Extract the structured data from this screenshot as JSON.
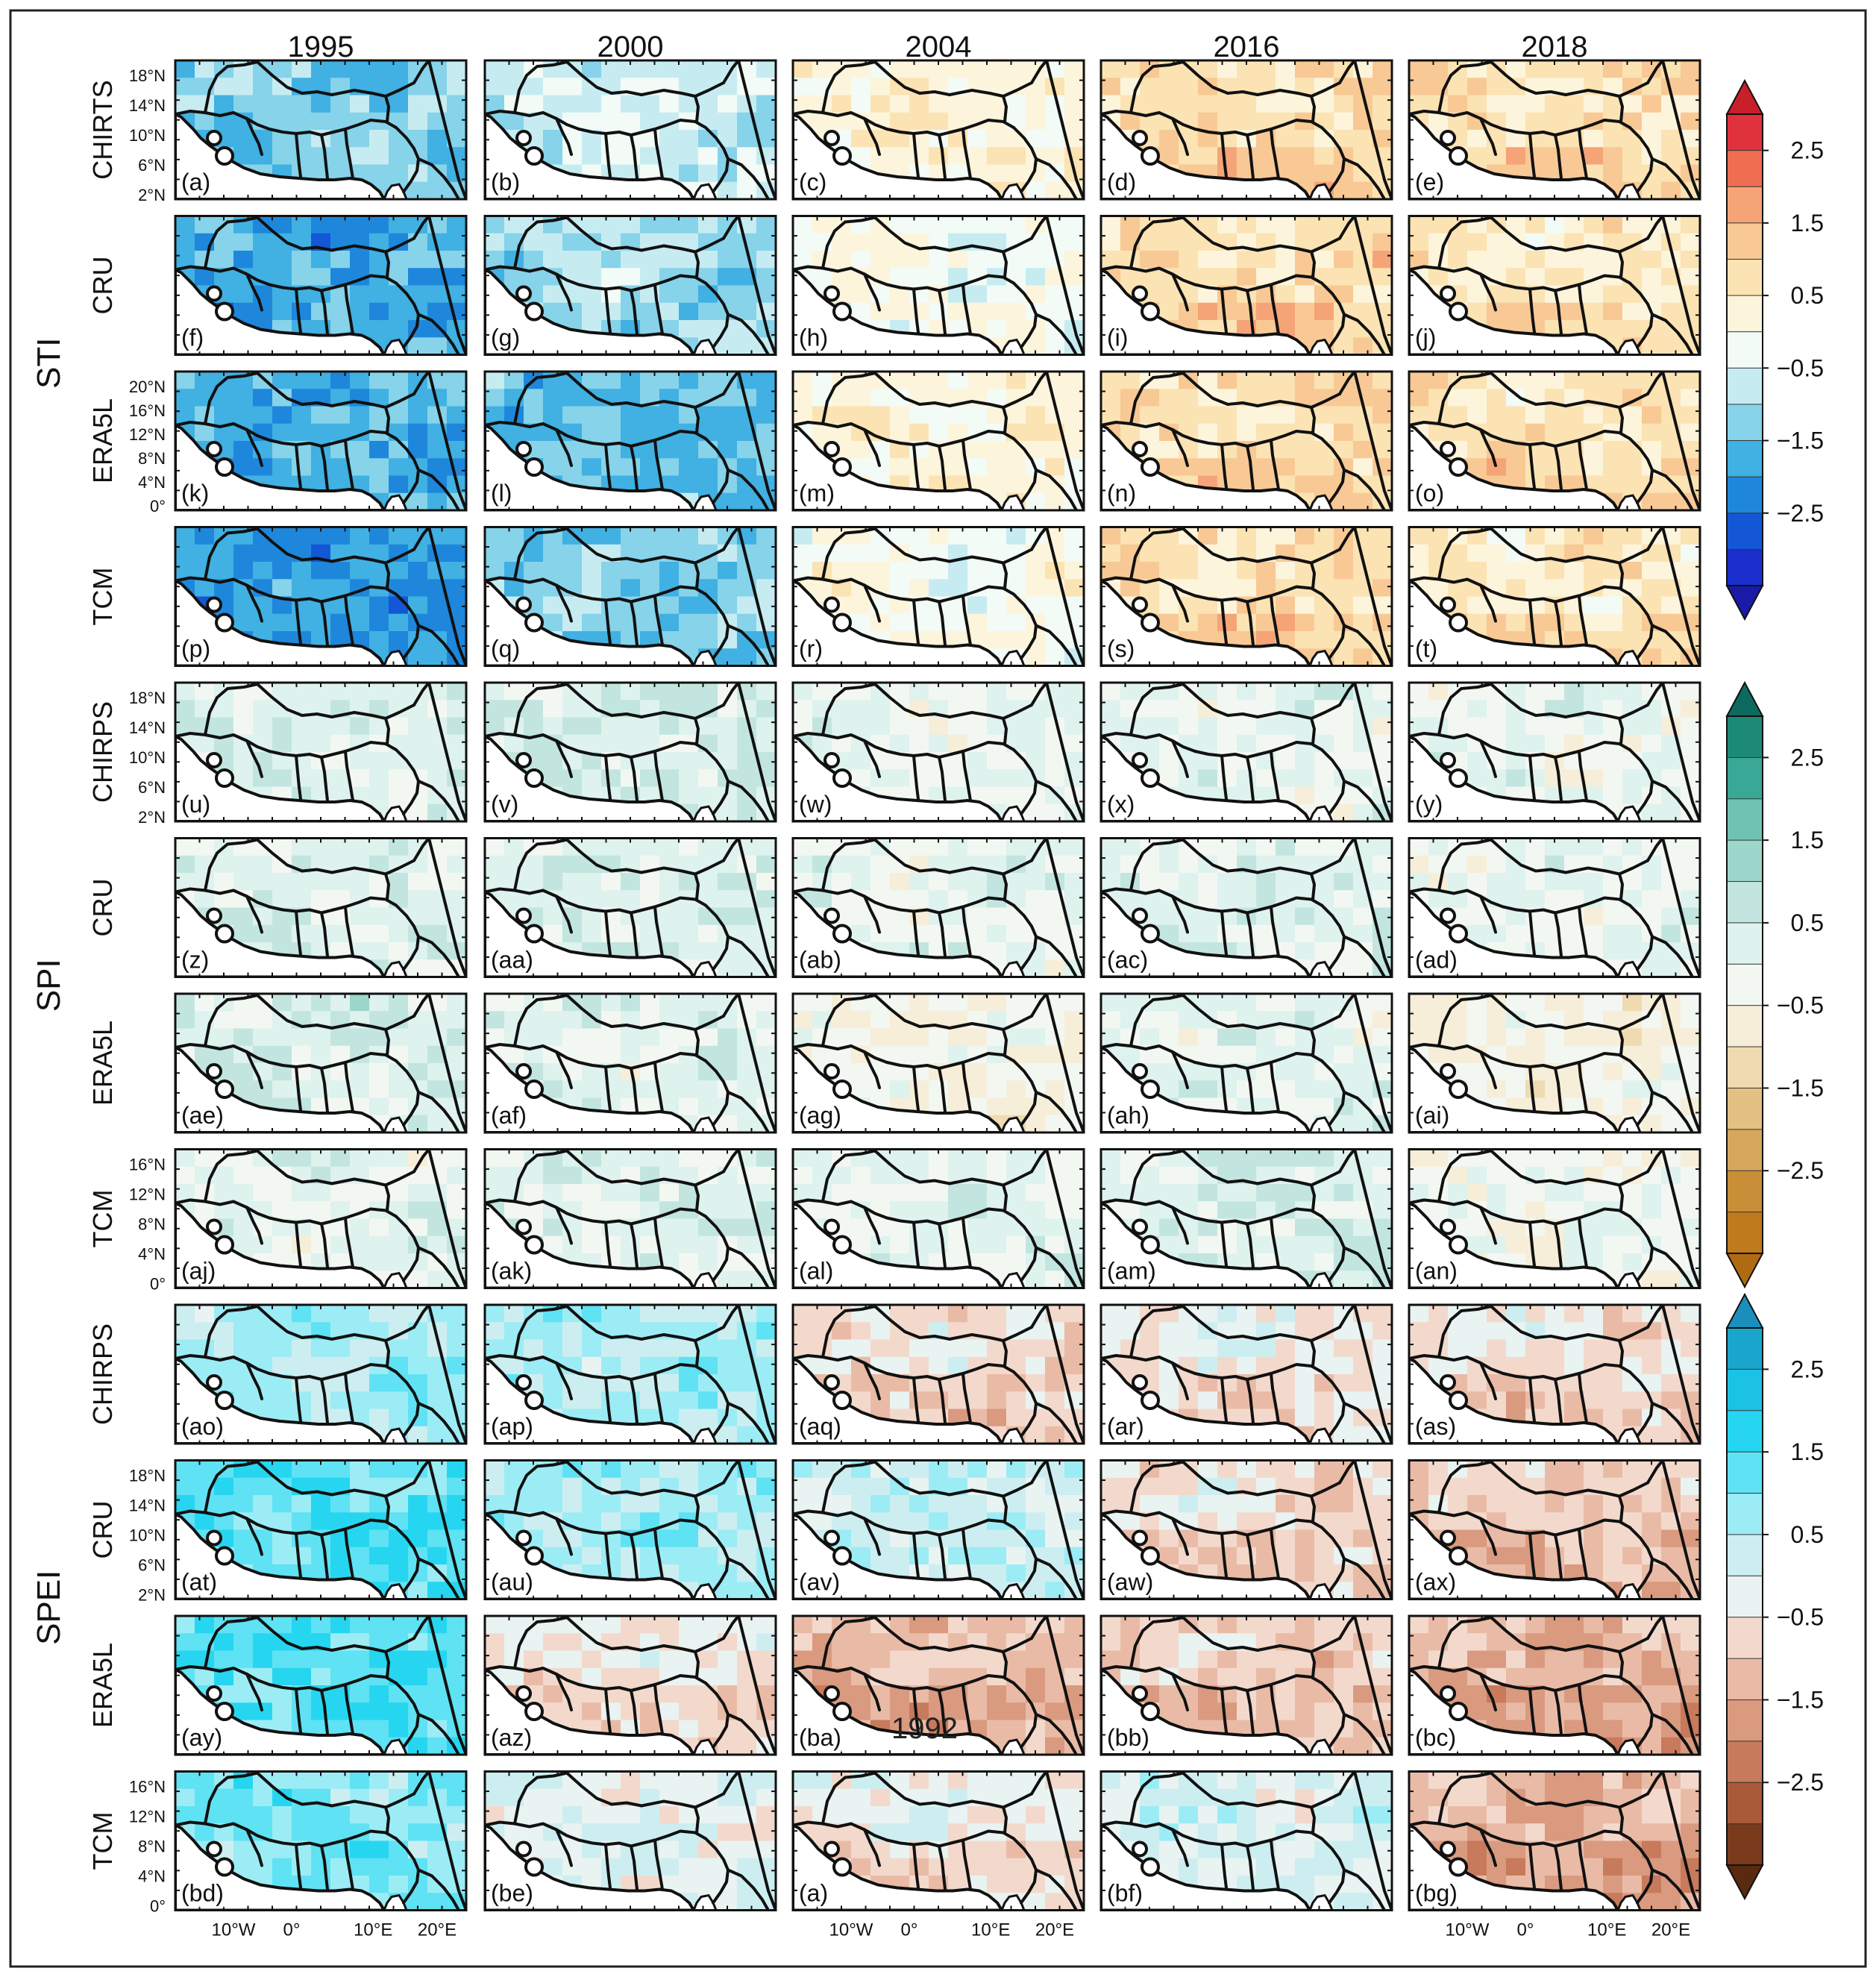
{
  "years": [
    "1995",
    "2000",
    "2004",
    "2016",
    "2018"
  ],
  "groups": [
    {
      "name": "STI",
      "rows": [
        "CHIRTS",
        "CRU",
        "ERA5L",
        "TCM"
      ]
    },
    {
      "name": "SPI",
      "rows": [
        "CHIRPS",
        "CRU",
        "ERA5L",
        "TCM"
      ]
    },
    {
      "name": "SPEI",
      "rows": [
        "CHIRPS",
        "CRU",
        "ERA5L",
        "TCM"
      ]
    }
  ],
  "panel_labels": [
    [
      "(a)",
      "(b)",
      "(c)",
      "(d)",
      "(e)"
    ],
    [
      "(f)",
      "(g)",
      "(h)",
      "(i)",
      "(j)"
    ],
    [
      "(k)",
      "(l)",
      "(m)",
      "(n)",
      "(o)"
    ],
    [
      "(p)",
      "(q)",
      "(r)",
      "(s)",
      "(t)"
    ],
    [
      "(u)",
      "(v)",
      "(w)",
      "(x)",
      "(y)"
    ],
    [
      "(z)",
      "(aa)",
      "(ab)",
      "(ac)",
      "(ad)"
    ],
    [
      "(ae)",
      "(af)",
      "(ag)",
      "(ah)",
      "(ai)"
    ],
    [
      "(aj)",
      "(ak)",
      "(al)",
      "(am)",
      "(an)"
    ],
    [
      "(ao)",
      "(ap)",
      "(aq)",
      "(ar)",
      "(as)"
    ],
    [
      "(at)",
      "(au)",
      "(av)",
      "(aw)",
      "(ax)"
    ],
    [
      "(ay)",
      "(az)",
      "(ba)",
      "(bb)",
      "(bc)"
    ],
    [
      "(bd)",
      "(be)",
      "(a)",
      "(bf)",
      "(bg)"
    ]
  ],
  "stray_text": "1992",
  "lat_ticks": {
    "0": [
      "18°N",
      "14°N",
      "10°N",
      "6°N",
      "2°N"
    ],
    "2": [
      "20°N",
      "16°N",
      "12°N",
      "8°N",
      "4°N",
      "0°"
    ],
    "4": [
      "18°N",
      "14°N",
      "10°N",
      "6°N",
      "2°N"
    ],
    "7": [
      "16°N",
      "12°N",
      "8°N",
      "4°N",
      "0°"
    ],
    "9": [
      "18°N",
      "14°N",
      "10°N",
      "6°N",
      "2°N"
    ],
    "11": [
      "16°N",
      "12°N",
      "8°N",
      "4°N",
      "0°"
    ]
  },
  "lon_ticks": [
    "10°W",
    "0°",
    "10°E",
    "20°E"
  ],
  "lon_tick_columns": [
    0,
    2,
    4
  ],
  "colorbars": [
    {
      "name": "STI",
      "labels": [
        "2.5",
        "1.5",
        "0.5",
        "−0.5",
        "−1.5",
        "−2.5"
      ],
      "top": "#c81f2b",
      "bottom": "#1a1aa8",
      "colors": [
        "#e0323c",
        "#ef6d50",
        "#f5a478",
        "#f8c995",
        "#fbe3b3",
        "#fdf4dc",
        "#f2fbf6",
        "#c6ecf2",
        "#86d3ea",
        "#41b0e2",
        "#1e87dc",
        "#1457d6",
        "#1a2fcc"
      ]
    },
    {
      "name": "SPI",
      "labels": [
        "2.5",
        "1.5",
        "0.5",
        "−0.5",
        "−1.5",
        "−2.5"
      ],
      "top": "#0e6a5e",
      "bottom": "#b06a14",
      "colors": [
        "#1d8a78",
        "#3aa896",
        "#6fc3b3",
        "#9dd6ca",
        "#c2e6df",
        "#def2ee",
        "#f3f7f2",
        "#f6eed8",
        "#efdab2",
        "#e3c184",
        "#d6a75c",
        "#c98e38",
        "#bf7a1e"
      ]
    },
    {
      "name": "SPEI",
      "labels": [
        "2.5",
        "1.5",
        "0.5",
        "−0.5",
        "−1.5",
        "−2.5"
      ],
      "top": "#1a8fbb",
      "bottom": "#5a2a10",
      "colors": [
        "#1aa6cc",
        "#1cc2e4",
        "#26d6f0",
        "#5fe2f3",
        "#9cecf5",
        "#cdeef0",
        "#e9f3f1",
        "#f3d9cc",
        "#e9bba6",
        "#d99a80",
        "#c77a5c",
        "#a95a38",
        "#7a3a1c"
      ]
    }
  ],
  "tone": {
    "STI": [
      [
        -1.0,
        -0.4,
        0.45,
        1.0,
        0.95
      ],
      [
        -1.6,
        -0.8,
        0.1,
        1.05,
        0.75
      ],
      [
        -1.4,
        -1.3,
        0.45,
        1.0,
        0.85
      ],
      [
        -1.7,
        -1.0,
        0.15,
        1.0,
        0.75
      ]
    ],
    "SPI": [
      [
        0.5,
        0.6,
        0.2,
        0.25,
        0.2
      ],
      [
        0.45,
        0.5,
        0.3,
        0.45,
        0.15
      ],
      [
        0.6,
        0.4,
        -0.2,
        0.3,
        -0.25
      ],
      [
        0.3,
        0.45,
        0.35,
        0.55,
        0.05
      ]
    ],
    "SPEI": [
      [
        0.9,
        0.8,
        -0.3,
        -0.1,
        -0.3
      ],
      [
        1.6,
        0.9,
        0.5,
        -0.3,
        -0.6
      ],
      [
        1.6,
        -0.2,
        -0.9,
        -0.6,
        -1.0
      ],
      [
        1.2,
        0.1,
        -0.1,
        0.3,
        -1.0
      ]
    ]
  }
}
